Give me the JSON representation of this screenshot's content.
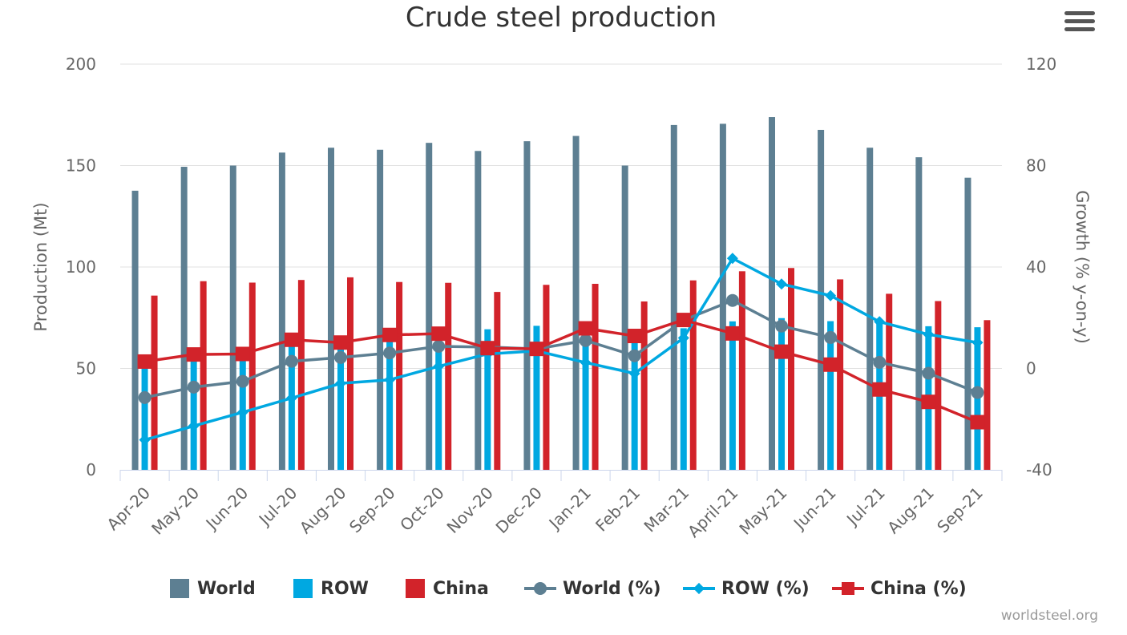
{
  "title": "Crude steel production",
  "credit": "worldsteel.org",
  "menu_icon": "hamburger-menu-icon",
  "colors": {
    "world": "#5d7f92",
    "row": "#00a8e1",
    "china": "#d2232a",
    "grid": "#e0e0e0",
    "text": "#666666"
  },
  "chart_data": {
    "type": "bar",
    "title": "Crude steel production",
    "categories": [
      "Apr-20",
      "May-20",
      "Jun-20",
      "Jul-20",
      "Aug-20",
      "Sep-20",
      "Oct-20",
      "Nov-20",
      "Dec-20",
      "Jan-21",
      "Feb-21",
      "Mar-21",
      "April-21",
      "May-21",
      "Jun-21",
      "Jul-21",
      "Aug-21",
      "Sep-21"
    ],
    "y_left": {
      "label": "Production (Mt)",
      "min": 0,
      "max": 200,
      "ticks": [
        0,
        50,
        100,
        150,
        200
      ]
    },
    "y_right": {
      "label": "Growth (% y-on-y)",
      "min": -40,
      "max": 120,
      "ticks": [
        -40,
        0,
        40,
        80,
        120
      ]
    },
    "grid": true,
    "legend_position": "bottom",
    "bar_series": [
      {
        "name": "World",
        "color": "#5d7f92",
        "values": [
          137.6,
          149.4,
          150.0,
          156.4,
          158.8,
          157.8,
          161.2,
          157.2,
          162.0,
          164.6,
          150.0,
          170.0,
          170.6,
          173.9,
          167.6,
          158.8,
          154.1,
          144.0
        ]
      },
      {
        "name": "ROW",
        "color": "#00a8e1",
        "values": [
          51.8,
          56.4,
          57.7,
          62.6,
          61.2,
          64.7,
          69.4,
          69.3,
          71.0,
          72.6,
          67.8,
          69.8,
          73.2,
          74.8,
          73.3,
          72.6,
          70.8,
          70.3
        ]
      },
      {
        "name": "China",
        "color": "#d2232a",
        "values": [
          85.9,
          93.0,
          92.3,
          93.6,
          94.9,
          92.6,
          92.2,
          87.7,
          91.2,
          91.7,
          83.0,
          93.4,
          97.9,
          99.5,
          93.9,
          86.8,
          83.2,
          73.8
        ]
      }
    ],
    "line_series": [
      {
        "name": "World (%)",
        "color": "#5d7f92",
        "marker": "circle",
        "values": [
          -11.5,
          -7.4,
          -5.1,
          2.8,
          4.3,
          6.1,
          8.7,
          8.4,
          7.7,
          11.0,
          5.0,
          19.0,
          26.8,
          16.7,
          12.2,
          2.4,
          -1.9,
          -9.5
        ]
      },
      {
        "name": "ROW (%)",
        "color": "#00a8e1",
        "marker": "diamond",
        "values": [
          -28.2,
          -22.7,
          -17.3,
          -11.7,
          -5.9,
          -4.5,
          0.8,
          5.7,
          6.9,
          2.3,
          -2.0,
          12.0,
          43.4,
          33.3,
          28.7,
          18.4,
          13.4,
          10.2
        ]
      },
      {
        "name": "China (%)",
        "color": "#d2232a",
        "marker": "square",
        "values": [
          2.7,
          5.5,
          5.7,
          11.3,
          10.2,
          13.2,
          13.7,
          8.0,
          7.7,
          15.8,
          12.8,
          19.1,
          13.8,
          6.6,
          1.5,
          -8.3,
          -13.2,
          -21.2
        ]
      }
    ]
  },
  "legend": [
    {
      "label": "World",
      "type": "bar",
      "color": "#5d7f92"
    },
    {
      "label": "ROW",
      "type": "bar",
      "color": "#00a8e1"
    },
    {
      "label": "China",
      "type": "bar",
      "color": "#d2232a"
    },
    {
      "label": "World (%)",
      "type": "line",
      "marker": "circle",
      "color": "#5d7f92"
    },
    {
      "label": "ROW (%)",
      "type": "line",
      "marker": "diamond",
      "color": "#00a8e1"
    },
    {
      "label": "China (%)",
      "type": "line",
      "marker": "square",
      "color": "#d2232a"
    }
  ]
}
